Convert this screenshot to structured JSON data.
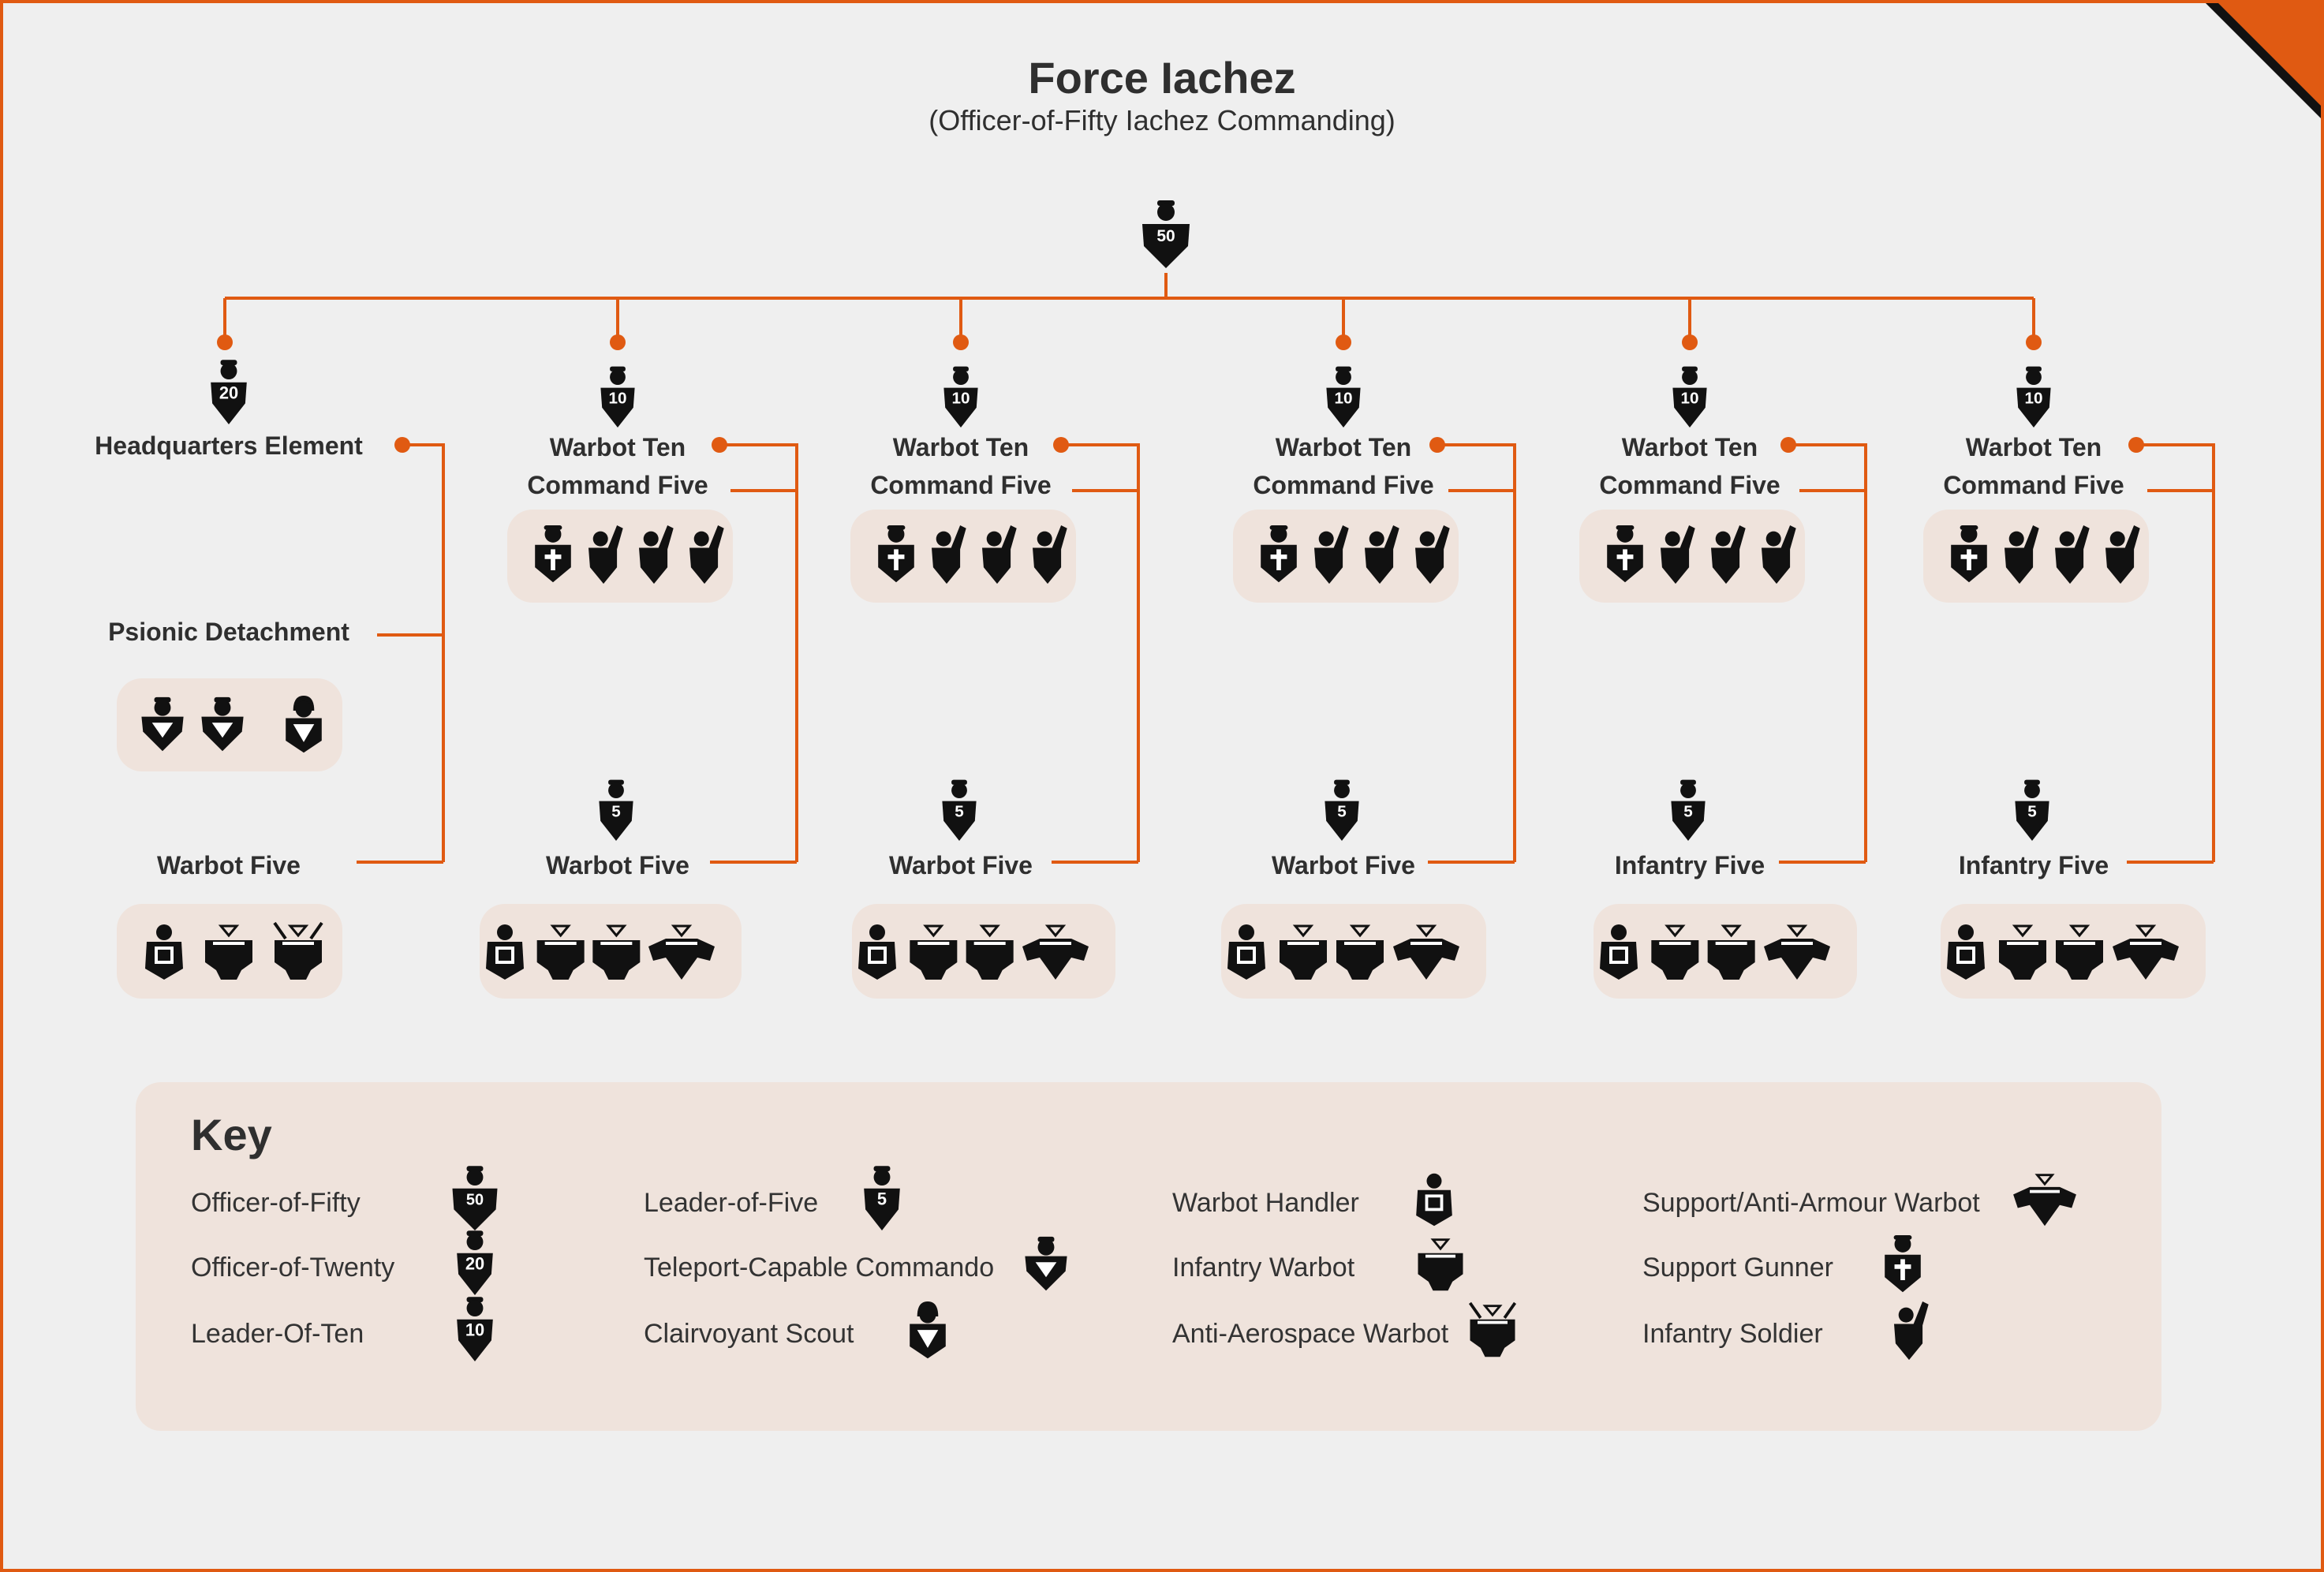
{
  "title": "Force Iachez",
  "subtitle": "(Officer-of-Fifty Iachez Commanding)",
  "colors": {
    "accent": "#e05a12",
    "background": "#efefef",
    "panel": "#efe3dc",
    "icon": "#111111",
    "text": "#2f2f2f"
  },
  "commander": {
    "icon": "officer-of-fifty",
    "badge": "50"
  },
  "hq": {
    "leader": {
      "icon": "officer-of-twenty",
      "badge": "20"
    },
    "label": "Headquarters Element",
    "psionic": {
      "label": "Psionic Detachment",
      "members": [
        "teleport-commando",
        "teleport-commando",
        "clairvoyant-scout"
      ]
    },
    "five": {
      "label": "Warbot Five",
      "members": [
        "warbot-handler",
        "infantry-warbot",
        "anti-aerospace-warbot"
      ]
    }
  },
  "tens": [
    {
      "leader_badge": "10",
      "label1": "Warbot Ten",
      "label2": "Command Five",
      "cmd_members": [
        "support-gunner",
        "infantry-soldier",
        "infantry-soldier",
        "infantry-soldier"
      ],
      "five_leader_badge": "5",
      "five_label": "Warbot Five",
      "five_members": [
        "warbot-handler",
        "infantry-warbot",
        "infantry-warbot",
        "support-warbot"
      ]
    },
    {
      "leader_badge": "10",
      "label1": "Warbot Ten",
      "label2": "Command Five",
      "cmd_members": [
        "support-gunner",
        "infantry-soldier",
        "infantry-soldier",
        "infantry-soldier"
      ],
      "five_leader_badge": "5",
      "five_label": "Warbot Five",
      "five_members": [
        "warbot-handler",
        "infantry-warbot",
        "infantry-warbot",
        "support-warbot"
      ]
    },
    {
      "leader_badge": "10",
      "label1": "Warbot Ten",
      "label2": "Command Five",
      "cmd_members": [
        "support-gunner",
        "infantry-soldier",
        "infantry-soldier",
        "infantry-soldier"
      ],
      "five_leader_badge": "5",
      "five_label": "Warbot Five",
      "five_members": [
        "warbot-handler",
        "infantry-warbot",
        "infantry-warbot",
        "support-warbot"
      ]
    },
    {
      "leader_badge": "10",
      "label1": "Warbot Ten",
      "label2": "Command Five",
      "cmd_members": [
        "support-gunner",
        "infantry-soldier",
        "infantry-soldier",
        "infantry-soldier"
      ],
      "five_leader_badge": "5",
      "five_label": "Infantry Five",
      "five_members": [
        "warbot-handler",
        "infantry-warbot",
        "infantry-warbot",
        "support-warbot"
      ]
    },
    {
      "leader_badge": "10",
      "label1": "Warbot Ten",
      "label2": "Command Five",
      "cmd_members": [
        "support-gunner",
        "infantry-soldier",
        "infantry-soldier",
        "infantry-soldier"
      ],
      "five_leader_badge": "5",
      "five_label": "Infantry Five",
      "five_members": [
        "warbot-handler",
        "infantry-warbot",
        "infantry-warbot",
        "support-warbot"
      ]
    }
  ],
  "key": {
    "heading": "Key",
    "items": [
      {
        "label": "Officer-of-Fifty",
        "icon": "officer-of-fifty",
        "badge": "50"
      },
      {
        "label": "Officer-of-Twenty",
        "icon": "officer-of-twenty",
        "badge": "20"
      },
      {
        "label": "Leader-Of-Ten",
        "icon": "leader-of-ten",
        "badge": "10"
      },
      {
        "label": "Leader-of-Five",
        "icon": "leader-of-five",
        "badge": "5"
      },
      {
        "label": "Teleport-Capable Commando",
        "icon": "teleport-commando"
      },
      {
        "label": "Clairvoyant Scout",
        "icon": "clairvoyant-scout"
      },
      {
        "label": "Warbot Handler",
        "icon": "warbot-handler"
      },
      {
        "label": "Infantry Warbot",
        "icon": "infantry-warbot"
      },
      {
        "label": "Anti-Aerospace Warbot",
        "icon": "anti-aerospace-warbot"
      },
      {
        "label": "Support/Anti-Armour Warbot",
        "icon": "support-warbot"
      },
      {
        "label": "Support Gunner",
        "icon": "support-gunner"
      },
      {
        "label": "Infantry Soldier",
        "icon": "infantry-soldier"
      }
    ]
  }
}
